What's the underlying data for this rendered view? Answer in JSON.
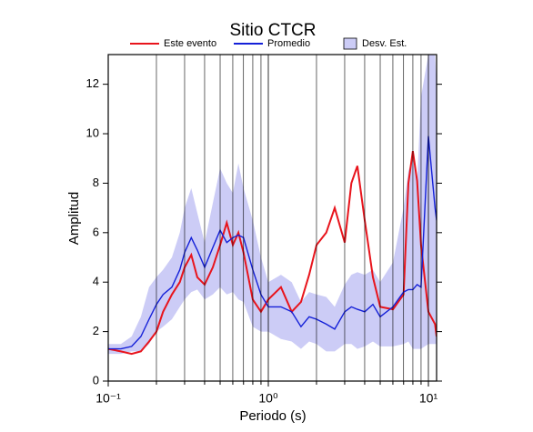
{
  "chart_data": {
    "type": "line",
    "title": "Sitio CTCR",
    "x_label": "Periodo (s)",
    "y_label": "Amplitud",
    "x": [
      0.1,
      0.12,
      0.14,
      0.16,
      0.18,
      0.2,
      0.22,
      0.25,
      0.28,
      0.3,
      0.33,
      0.36,
      0.4,
      0.45,
      0.5,
      0.55,
      0.6,
      0.65,
      0.7,
      0.8,
      0.9,
      1.0,
      1.2,
      1.4,
      1.6,
      1.8,
      2.0,
      2.3,
      2.6,
      3.0,
      3.3,
      3.6,
      4.0,
      4.5,
      5,
      6,
      7,
      7.5,
      8,
      8.5,
      9,
      10,
      11,
      11.25
    ],
    "series": [
      {
        "name": "Desv. Est.",
        "color": "#ccccf6",
        "kind": "band",
        "lower": [
          1.1,
          1.1,
          1.2,
          1.2,
          1.5,
          2.0,
          2.2,
          2.5,
          3.0,
          3.3,
          3.6,
          3.7,
          3.3,
          3.5,
          3.8,
          3.5,
          3.6,
          3.3,
          3.2,
          2.2,
          2.0,
          2.0,
          1.7,
          1.6,
          1.3,
          1.6,
          1.5,
          1.2,
          1.2,
          1.5,
          1.5,
          1.3,
          1.4,
          1.6,
          1.4,
          1.4,
          1.5,
          1.6,
          1.3,
          1.3,
          1.3,
          1.5,
          1.5,
          1.5
        ],
        "upper": [
          1.5,
          1.5,
          1.8,
          2.6,
          3.8,
          4.2,
          4.5,
          5.0,
          6.0,
          7.0,
          7.8,
          6.8,
          5.6,
          7.2,
          8.6,
          8.0,
          7.6,
          8.8,
          7.8,
          6.5,
          5.0,
          4.0,
          4.3,
          4.0,
          3.2,
          3.6,
          3.5,
          3.4,
          3.0,
          3.9,
          4.3,
          4.4,
          4.3,
          4.5,
          4.0,
          4.8,
          7.0,
          8.5,
          9.0,
          8.0,
          11.5,
          13.2,
          13.2,
          12.0
        ]
      },
      {
        "name": "Este evento",
        "color": "#e8141c",
        "values": [
          1.3,
          1.2,
          1.1,
          1.2,
          1.6,
          2.0,
          2.8,
          3.5,
          4.0,
          4.6,
          5.1,
          4.2,
          3.9,
          4.6,
          5.5,
          6.4,
          5.5,
          6.0,
          5.2,
          3.3,
          2.8,
          3.3,
          3.8,
          2.8,
          3.2,
          4.3,
          5.5,
          6.0,
          7.0,
          5.6,
          8.0,
          8.7,
          6.5,
          4.2,
          3.0,
          2.9,
          3.5,
          8.0,
          9.3,
          8.1,
          5.5,
          2.8,
          2.3,
          1.8
        ]
      },
      {
        "name": "Promedio",
        "color": "#1420d8",
        "values": [
          1.3,
          1.3,
          1.4,
          1.8,
          2.5,
          3.1,
          3.5,
          3.8,
          4.5,
          5.2,
          5.8,
          5.3,
          4.6,
          5.4,
          6.1,
          5.6,
          5.8,
          5.9,
          5.8,
          4.5,
          3.5,
          3.0,
          3.0,
          2.8,
          2.2,
          2.6,
          2.5,
          2.3,
          2.1,
          2.8,
          3.0,
          2.9,
          2.8,
          3.1,
          2.6,
          3.0,
          3.6,
          3.7,
          3.7,
          3.9,
          3.8,
          9.9,
          7.0,
          6.5
        ]
      }
    ],
    "xscale": "log",
    "xlim": [
      0.1,
      11.25
    ],
    "xticks": [
      {
        "value": 0.1,
        "label": "10⁻¹"
      },
      {
        "value": 1,
        "label": "10⁰"
      },
      {
        "value": 10,
        "label": "10¹"
      }
    ],
    "xminorticks": [
      0.2,
      0.3,
      0.4,
      0.5,
      0.6,
      0.7,
      0.8,
      0.9,
      2,
      3,
      4,
      5,
      6,
      7,
      8,
      9
    ],
    "ylim": [
      0,
      13.2
    ],
    "yticks": [
      0,
      2,
      4,
      6,
      8,
      10,
      12
    ],
    "grid": true
  }
}
